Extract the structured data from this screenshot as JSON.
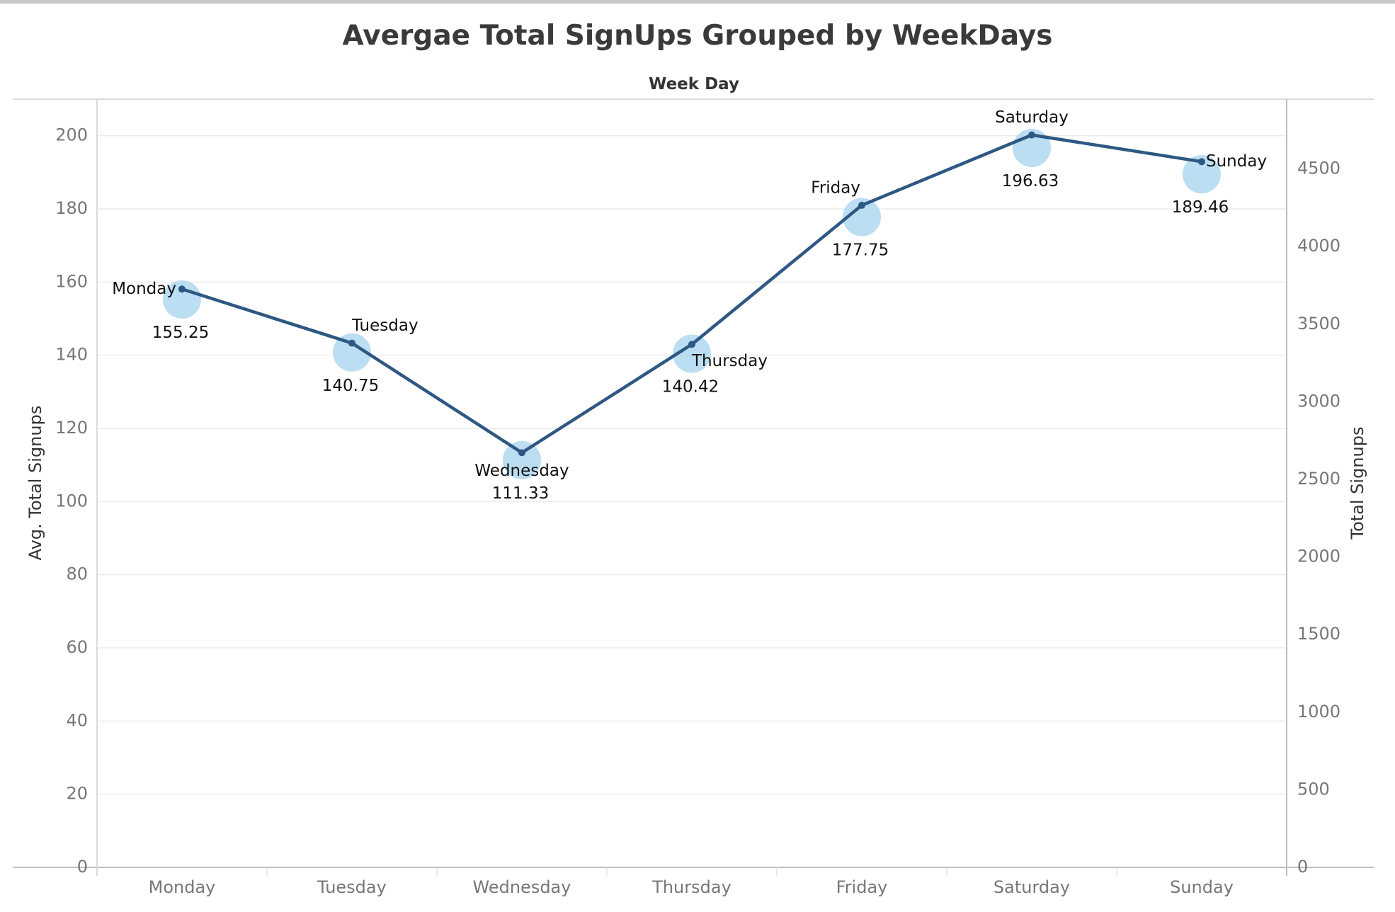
{
  "chart_data": {
    "type": "line",
    "title": "Avergae Total SignUps Grouped by WeekDays",
    "header_label": "Week Day",
    "xlabel": "",
    "ylabel_left": "Avg. Total Signups",
    "ylabel_right": "Total Signups",
    "categories": [
      "Monday",
      "Tuesday",
      "Wednesday",
      "Thursday",
      "Friday",
      "Saturday",
      "Sunday"
    ],
    "left_axis": {
      "ylim": [
        0,
        210
      ],
      "ticks": [
        "0",
        "20",
        "40",
        "60",
        "80",
        "100",
        "120",
        "140",
        "160",
        "180",
        "200"
      ]
    },
    "right_axis": {
      "ylim": [
        0,
        4950
      ],
      "ticks": [
        "0",
        "500",
        "1000",
        "1500",
        "2000",
        "2500",
        "3000",
        "3500",
        "4000",
        "4500"
      ]
    },
    "series": [
      {
        "name": "Avg. Total Signups",
        "axis": "left",
        "mark": "circle",
        "color": "#b7dcf1",
        "values": [
          155.25,
          140.75,
          111.33,
          140.42,
          177.75,
          196.63,
          189.46
        ],
        "labels": [
          "155.25",
          "140.75",
          "111.33",
          "140.42",
          "177.75",
          "196.63",
          "189.46"
        ]
      },
      {
        "name": "Total Signups",
        "axis": "right",
        "mark": "line",
        "color": "#2e5883",
        "values": [
          3726,
          3378,
          2672,
          3370,
          4266,
          4719,
          4547
        ]
      }
    ],
    "line_labels": [
      "Monday",
      "Tuesday",
      "Wednesday",
      "Thursday",
      "Friday",
      "Saturday",
      "Sunday"
    ],
    "grid": true,
    "legend": "none"
  }
}
